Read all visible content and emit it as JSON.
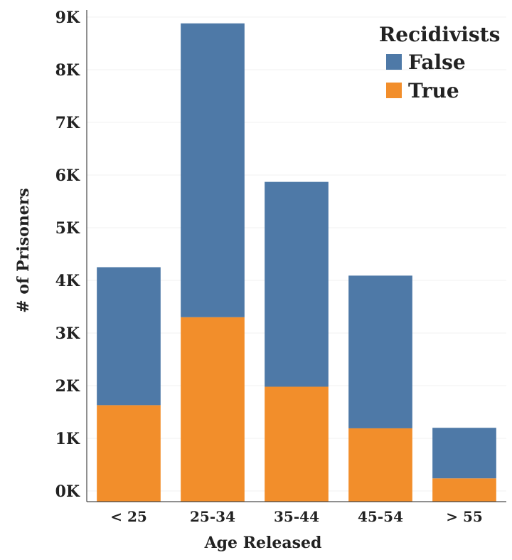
{
  "chart_data": {
    "type": "bar",
    "stacked": true,
    "categories": [
      "< 25",
      "25-34",
      "35-44",
      "45-54",
      "> 55"
    ],
    "series": [
      {
        "name": "True",
        "color": "#F28E2B",
        "values": [
          1630,
          3300,
          1980,
          1190,
          240
        ]
      },
      {
        "name": "False",
        "color": "#4E79A7",
        "values": [
          2620,
          5580,
          3890,
          2900,
          960
        ]
      }
    ],
    "xlabel": "Age Released",
    "ylabel": "# of Prisoners",
    "ylim": [
      0,
      9000
    ],
    "y_ticks": [
      {
        "value": 0,
        "label": "0K"
      },
      {
        "value": 1000,
        "label": "1K"
      },
      {
        "value": 2000,
        "label": "2K"
      },
      {
        "value": 3000,
        "label": "3K"
      },
      {
        "value": 4000,
        "label": "4K"
      },
      {
        "value": 5000,
        "label": "5K"
      },
      {
        "value": 6000,
        "label": "6K"
      },
      {
        "value": 7000,
        "label": "7K"
      },
      {
        "value": 8000,
        "label": "8K"
      },
      {
        "value": 9000,
        "label": "9K"
      }
    ],
    "grid": true,
    "legend": {
      "title": "Recidivists",
      "placement": "top-right",
      "entries": [
        {
          "label": "False",
          "color": "#4E79A7"
        },
        {
          "label": "True",
          "color": "#F28E2B"
        }
      ]
    }
  }
}
